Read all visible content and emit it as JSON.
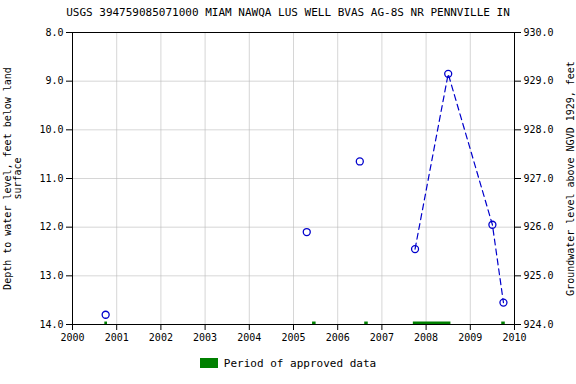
{
  "chart_data": {
    "type": "line",
    "title": "USGS 394759085071000 MIAM NAWQA LUS WELL BVAS AG-8S NR PENNVILLE IN",
    "ylabel": "Depth to water level, feet below land\nsurface",
    "y2label": "Groundwater level above NGVD 1929, feet",
    "xlim": [
      2000,
      2010
    ],
    "xticks": [
      2000,
      2001,
      2002,
      2003,
      2004,
      2005,
      2006,
      2007,
      2008,
      2009,
      2010
    ],
    "ylim": [
      14.0,
      8.0
    ],
    "yticks": [
      {
        "value": 8.0,
        "label": "8.0"
      },
      {
        "value": 9.0,
        "label": "9.0"
      },
      {
        "value": 10.0,
        "label": "10.0"
      },
      {
        "value": 11.0,
        "label": "11.0"
      },
      {
        "value": 12.0,
        "label": "12.0"
      },
      {
        "value": 13.0,
        "label": "13.0"
      },
      {
        "value": 14.0,
        "label": "14.0"
      }
    ],
    "y2lim": [
      924.0,
      930.0
    ],
    "y2ticks": [
      {
        "value": 924.0,
        "label": "924.0"
      },
      {
        "value": 925.0,
        "label": "925.0"
      },
      {
        "value": 926.0,
        "label": "926.0"
      },
      {
        "value": 927.0,
        "label": "927.0"
      },
      {
        "value": 928.0,
        "label": "928.0"
      },
      {
        "value": 929.0,
        "label": "929.0"
      },
      {
        "value": 930.0,
        "label": "930.0"
      }
    ],
    "grid": true,
    "legend": "bottom",
    "series": [
      {
        "type": "scatter",
        "marker": "circle",
        "color": "#0000cc",
        "x": [
          2000.75,
          2005.3,
          2006.5
        ],
        "values": [
          13.8,
          12.1,
          10.65
        ]
      },
      {
        "type": "line",
        "line_style": "dashed",
        "marker": "circle",
        "color": "#0000cc",
        "x": [
          2007.75,
          2008.5,
          2009.5,
          2009.75
        ],
        "values": [
          12.45,
          8.85,
          11.95,
          13.55
        ]
      },
      {
        "name": "Period of approved data",
        "type": "segments",
        "color": "#008000",
        "segments": [
          [
            2000.72,
            2000.78
          ],
          [
            2005.42,
            2005.5
          ],
          [
            2006.6,
            2006.68
          ],
          [
            2007.7,
            2008.55
          ],
          [
            2009.7,
            2009.78
          ]
        ],
        "y": 13.98
      }
    ]
  }
}
